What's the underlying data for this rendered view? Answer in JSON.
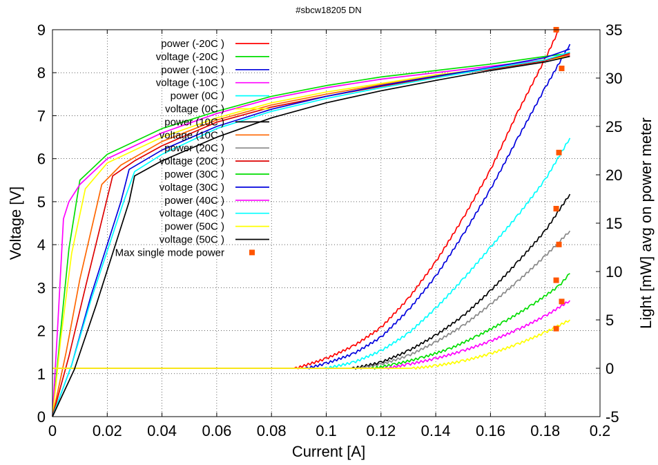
{
  "chart_data": {
    "type": "line",
    "title": "#sbcw18205 DN",
    "xlabel": "Current [A]",
    "ylabel": "Voltage [V]",
    "y2label": "Light [mW] avg on power meter",
    "xlim": [
      0,
      0.2
    ],
    "ylim": [
      0,
      9
    ],
    "y2lim": [
      -5,
      35
    ],
    "x_ticks": [
      "0",
      "0.02",
      "0.04",
      "0.06",
      "0.08",
      "0.1",
      "0.12",
      "0.14",
      "0.16",
      "0.18",
      "0.2"
    ],
    "y_ticks": [
      "0",
      "1",
      "2",
      "3",
      "4",
      "5",
      "6",
      "7",
      "8",
      "9"
    ],
    "y2_ticks": [
      "-5",
      "0",
      "5",
      "10",
      "15",
      "20",
      "25",
      "30",
      "35"
    ],
    "grid": true,
    "legend_position": "top-left",
    "series": [
      {
        "name": "power (-20C )",
        "color": "#ff0000",
        "axis": "y2",
        "kind": "power",
        "x": [
          0,
          0.089,
          0.1,
          0.11,
          0.12,
          0.13,
          0.14,
          0.15,
          0.16,
          0.17,
          0.18,
          0.185
        ],
        "y": [
          0,
          0,
          1,
          2.3,
          4.2,
          7.2,
          11,
          15.5,
          20.5,
          26.5,
          32,
          35
        ]
      },
      {
        "name": "voltage (-20C )",
        "color": "#00dd00",
        "axis": "y",
        "x": [
          0,
          0.003,
          0.006,
          0.01,
          0.02,
          0.04,
          0.06,
          0.08,
          0.1,
          0.12,
          0.14,
          0.16,
          0.18,
          0.189
        ],
        "y": [
          0,
          2.0,
          3.9,
          5.5,
          6.1,
          6.7,
          7.1,
          7.45,
          7.7,
          7.9,
          8.05,
          8.2,
          8.38,
          8.45
        ]
      },
      {
        "name": "power (-10C )",
        "color": "#0000dd",
        "axis": "y2",
        "kind": "power",
        "x": [
          0,
          0.093,
          0.1,
          0.11,
          0.12,
          0.13,
          0.14,
          0.15,
          0.16,
          0.17,
          0.18,
          0.189
        ],
        "y": [
          0,
          0,
          0.5,
          1.5,
          3.2,
          6,
          9.5,
          13.8,
          18.5,
          23.8,
          29,
          33.5
        ]
      },
      {
        "name": "voltage (-10C )",
        "color": "#ff00ff",
        "axis": "y",
        "x": [
          0,
          0.002,
          0.004,
          0.006,
          0.01,
          0.02,
          0.04,
          0.06,
          0.08,
          0.1,
          0.12,
          0.14,
          0.16,
          0.18,
          0.189
        ],
        "y": [
          0,
          2.2,
          4.6,
          5.0,
          5.4,
          6.0,
          6.6,
          7.05,
          7.4,
          7.65,
          7.85,
          8.0,
          8.15,
          8.3,
          8.4
        ]
      },
      {
        "name": "power (0C )",
        "color": "#00ffff",
        "axis": "y2",
        "kind": "power",
        "x": [
          0,
          0.1,
          0.11,
          0.12,
          0.13,
          0.14,
          0.15,
          0.16,
          0.17,
          0.18,
          0.189
        ],
        "y": [
          0,
          0,
          0.6,
          1.8,
          3.6,
          6.2,
          9.2,
          12.5,
          15.8,
          19.5,
          23.8
        ]
      },
      {
        "name": "voltage (0C )",
        "color": "#ffff00",
        "axis": "y",
        "x": [
          0,
          0.003,
          0.007,
          0.012,
          0.02,
          0.04,
          0.06,
          0.08,
          0.1,
          0.12,
          0.14,
          0.16,
          0.18,
          0.189
        ],
        "y": [
          0,
          1.8,
          3.8,
          5.3,
          5.9,
          6.5,
          6.95,
          7.3,
          7.55,
          7.75,
          7.95,
          8.1,
          8.3,
          8.38
        ]
      },
      {
        "name": "power (10C )",
        "color": "#000000",
        "axis": "y2",
        "kind": "power",
        "x": [
          0,
          0.11,
          0.12,
          0.13,
          0.14,
          0.15,
          0.16,
          0.17,
          0.18,
          0.189
        ],
        "y": [
          0,
          0,
          0.6,
          1.8,
          3.4,
          5.4,
          8,
          11,
          14.2,
          18
        ]
      },
      {
        "name": "voltage (10C )",
        "color": "#ff6600",
        "axis": "y",
        "x": [
          0,
          0.005,
          0.01,
          0.018,
          0.025,
          0.04,
          0.06,
          0.08,
          0.1,
          0.12,
          0.14,
          0.16,
          0.18,
          0.189
        ],
        "y": [
          0,
          1.5,
          3.2,
          5.4,
          5.85,
          6.4,
          6.9,
          7.25,
          7.5,
          7.72,
          7.92,
          8.1,
          8.3,
          8.42
        ]
      },
      {
        "name": "power (20C )",
        "color": "#888888",
        "axis": "y2",
        "kind": "power",
        "x": [
          0,
          0.112,
          0.12,
          0.13,
          0.14,
          0.15,
          0.16,
          0.17,
          0.18,
          0.189
        ],
        "y": [
          0,
          0,
          0.4,
          1.3,
          2.7,
          4.4,
          6.6,
          9,
          11.6,
          14.2
        ]
      },
      {
        "name": "voltage (20C )",
        "color": "#dd0000",
        "axis": "y",
        "x": [
          0,
          0.006,
          0.012,
          0.022,
          0.03,
          0.04,
          0.06,
          0.08,
          0.1,
          0.12,
          0.14,
          0.16,
          0.18,
          0.189
        ],
        "y": [
          0,
          1.4,
          3.0,
          5.6,
          5.95,
          6.3,
          6.85,
          7.2,
          7.45,
          7.68,
          7.9,
          8.08,
          8.28,
          8.45
        ]
      },
      {
        "name": "power (30C )",
        "color": "#00dd00",
        "axis": "y2",
        "kind": "power",
        "x": [
          0,
          0.117,
          0.125,
          0.135,
          0.145,
          0.155,
          0.165,
          0.175,
          0.185,
          0.189
        ],
        "y": [
          0,
          0,
          0.4,
          1.1,
          2.0,
          3.3,
          4.8,
          6.5,
          8.5,
          9.8
        ]
      },
      {
        "name": "voltage (30C )",
        "color": "#0000dd",
        "axis": "y",
        "x": [
          0,
          0.007,
          0.014,
          0.025,
          0.028,
          0.04,
          0.06,
          0.08,
          0.1,
          0.12,
          0.14,
          0.16,
          0.18,
          0.189
        ],
        "y": [
          0,
          1.2,
          2.8,
          5.0,
          5.75,
          6.2,
          6.75,
          7.15,
          7.45,
          7.7,
          7.92,
          8.12,
          8.35,
          8.55
        ]
      },
      {
        "name": "power (40C )",
        "color": "#ff00ff",
        "axis": "y2",
        "kind": "power",
        "x": [
          0,
          0.122,
          0.13,
          0.14,
          0.15,
          0.16,
          0.17,
          0.18,
          0.189
        ],
        "y": [
          0,
          0,
          0.4,
          1.0,
          1.8,
          2.8,
          4.0,
          5.4,
          7.0
        ]
      },
      {
        "name": "voltage (40C )",
        "color": "#00ffff",
        "axis": "y",
        "x": [
          0,
          0.007,
          0.014,
          0.026,
          0.03,
          0.04,
          0.06,
          0.08,
          0.1,
          0.12,
          0.14,
          0.16,
          0.18,
          0.189
        ],
        "y": [
          0,
          1.2,
          2.7,
          5.0,
          5.7,
          6.1,
          6.7,
          7.1,
          7.4,
          7.65,
          7.88,
          8.1,
          8.3,
          8.48
        ]
      },
      {
        "name": "power (50C )",
        "color": "#ffff00",
        "axis": "y2",
        "kind": "power",
        "x": [
          0,
          0.132,
          0.14,
          0.15,
          0.16,
          0.17,
          0.18,
          0.189
        ],
        "y": [
          0,
          0,
          0.25,
          0.75,
          1.5,
          2.5,
          3.7,
          5.0
        ]
      },
      {
        "name": "voltage (50C )",
        "color": "#000000",
        "axis": "y",
        "x": [
          0,
          0.008,
          0.016,
          0.028,
          0.03,
          0.04,
          0.06,
          0.08,
          0.1,
          0.12,
          0.14,
          0.16,
          0.18,
          0.189
        ],
        "y": [
          0,
          1.1,
          2.6,
          5.0,
          5.6,
          5.95,
          6.5,
          6.95,
          7.3,
          7.58,
          7.82,
          8.05,
          8.25,
          8.38
        ]
      },
      {
        "name": "Max single mode power",
        "color": "#ff5500",
        "axis": "y2",
        "kind": "points",
        "x": [
          0.184,
          0.186,
          0.185,
          0.184,
          0.185,
          0.184,
          0.186,
          0.184
        ],
        "y": [
          35,
          31,
          22.3,
          16.5,
          12.8,
          9.1,
          6.9,
          4.1
        ]
      }
    ]
  }
}
